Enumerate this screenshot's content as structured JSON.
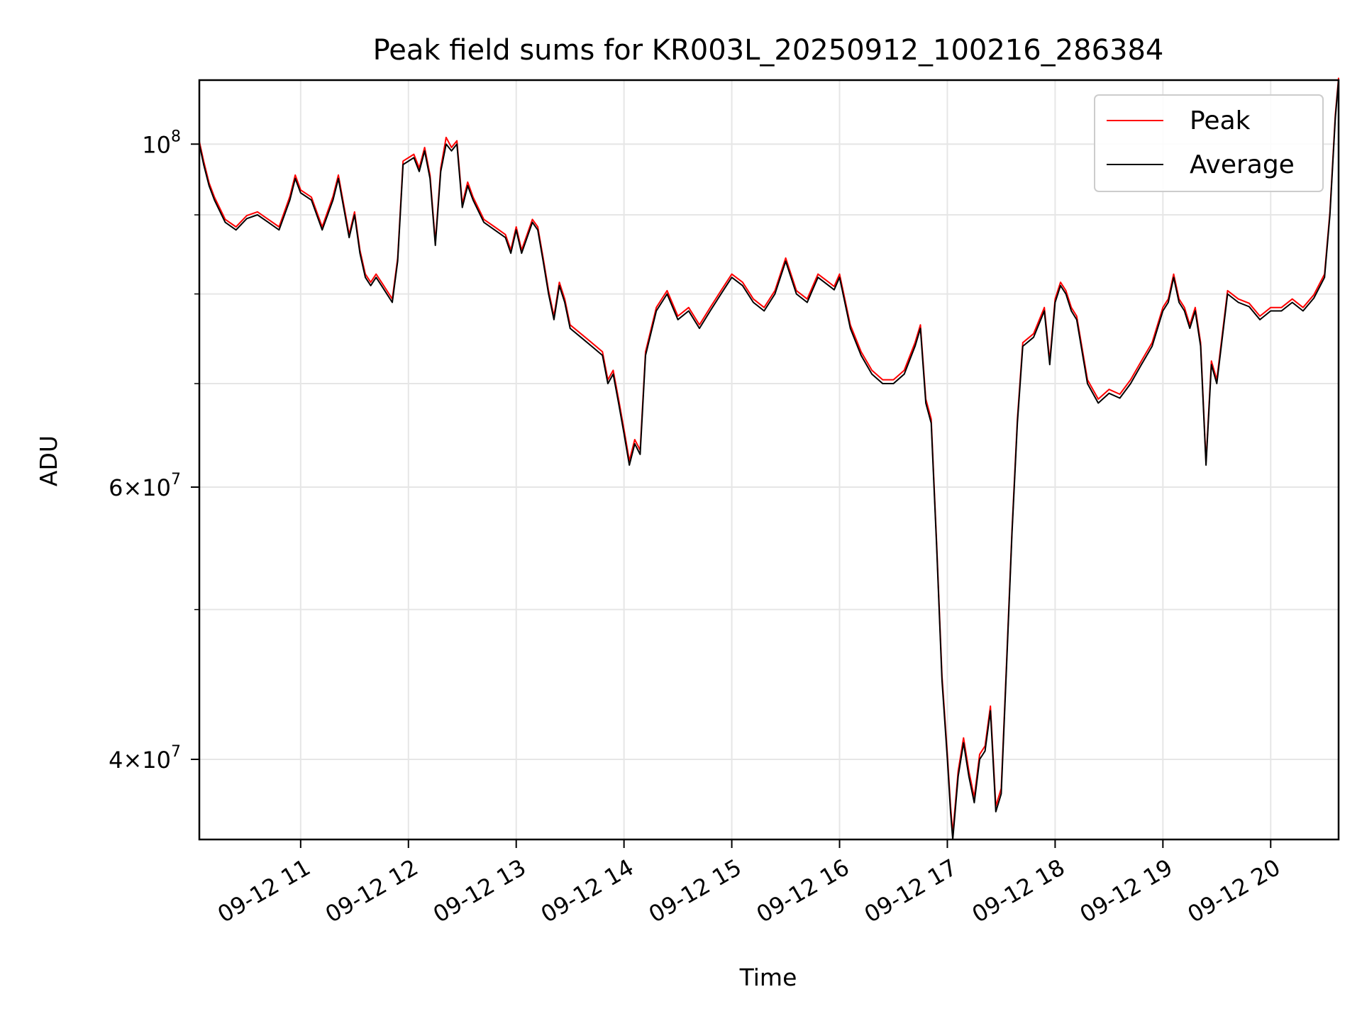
{
  "chart_data": {
    "type": "line",
    "title": "Peak field sums for KR003L_20250912_100216_286384",
    "xlabel": "Time",
    "ylabel": "ADU",
    "yscale": "log",
    "x_unit": "hours (clock time on 2025-09-12)",
    "xlim": [
      10.06,
      20.63
    ],
    "ylim": [
      35500000,
      110000000
    ],
    "grid": true,
    "legend_position": "top-right",
    "x_ticks": [
      {
        "value": 11,
        "label": "09-12 11"
      },
      {
        "value": 12,
        "label": "09-12 12"
      },
      {
        "value": 13,
        "label": "09-12 13"
      },
      {
        "value": 14,
        "label": "09-12 14"
      },
      {
        "value": 15,
        "label": "09-12 15"
      },
      {
        "value": 16,
        "label": "09-12 16"
      },
      {
        "value": 17,
        "label": "09-12 17"
      },
      {
        "value": 18,
        "label": "09-12 18"
      },
      {
        "value": 19,
        "label": "09-12 19"
      },
      {
        "value": 20,
        "label": "09-12 20"
      }
    ],
    "y_major_ticks": [
      {
        "value": 40000000,
        "base": "4",
        "exp": "7"
      },
      {
        "value": 60000000,
        "base": "6",
        "exp": "7"
      },
      {
        "value": 100000000,
        "base": "10",
        "exp": "8"
      }
    ],
    "y_minor_ticks": [
      50000000,
      70000000,
      80000000,
      90000000
    ],
    "times": [
      10.06,
      10.1,
      10.15,
      10.2,
      10.3,
      10.4,
      10.5,
      10.6,
      10.7,
      10.8,
      10.9,
      10.95,
      11.0,
      11.1,
      11.2,
      11.3,
      11.35,
      11.45,
      11.5,
      11.55,
      11.6,
      11.65,
      11.7,
      11.75,
      11.85,
      11.9,
      11.95,
      12.05,
      12.1,
      12.15,
      12.2,
      12.25,
      12.3,
      12.35,
      12.4,
      12.45,
      12.5,
      12.55,
      12.6,
      12.7,
      12.8,
      12.9,
      12.95,
      13.0,
      13.05,
      13.15,
      13.2,
      13.25,
      13.3,
      13.35,
      13.4,
      13.45,
      13.5,
      13.6,
      13.7,
      13.8,
      13.85,
      13.9,
      13.95,
      14.0,
      14.05,
      14.1,
      14.15,
      14.2,
      14.3,
      14.4,
      14.5,
      14.6,
      14.7,
      14.8,
      14.9,
      15.0,
      15.1,
      15.2,
      15.3,
      15.4,
      15.5,
      15.6,
      15.7,
      15.8,
      15.9,
      15.95,
      16.0,
      16.1,
      16.2,
      16.3,
      16.4,
      16.5,
      16.6,
      16.7,
      16.75,
      16.8,
      16.85,
      16.9,
      16.95,
      17.0,
      17.03,
      17.05,
      17.1,
      17.15,
      17.2,
      17.25,
      17.3,
      17.35,
      17.4,
      17.45,
      17.5,
      17.55,
      17.6,
      17.65,
      17.7,
      17.8,
      17.9,
      17.95,
      18.0,
      18.05,
      18.1,
      18.15,
      18.2,
      18.3,
      18.4,
      18.5,
      18.6,
      18.7,
      18.8,
      18.9,
      19.0,
      19.05,
      19.1,
      19.15,
      19.2,
      19.25,
      19.3,
      19.35,
      19.4,
      19.45,
      19.5,
      19.6,
      19.7,
      19.8,
      19.9,
      20.0,
      20.1,
      20.2,
      20.3,
      20.4,
      20.5,
      20.55,
      20.6,
      20.63
    ],
    "series": [
      {
        "name": "Average",
        "color": "#000000",
        "values": [
          100000000,
          97000000,
          94000000,
          92000000,
          89000000,
          88000000,
          89500000,
          90000000,
          89000000,
          88000000,
          92000000,
          95000000,
          93000000,
          92000000,
          88000000,
          92000000,
          95000000,
          87000000,
          90000000,
          85000000,
          82000000,
          81000000,
          82000000,
          81000000,
          79000000,
          84000000,
          97000000,
          98000000,
          96000000,
          99000000,
          95000000,
          86000000,
          96000000,
          100000000,
          99000000,
          100000000,
          91000000,
          94000000,
          92000000,
          89000000,
          88000000,
          87000000,
          85000000,
          88000000,
          85000000,
          89000000,
          88000000,
          84000000,
          80000000,
          77000000,
          81000000,
          79000000,
          76000000,
          75000000,
          74000000,
          73000000,
          70000000,
          71000000,
          68000000,
          65000000,
          62000000,
          64000000,
          63000000,
          73000000,
          78000000,
          80000000,
          77000000,
          78000000,
          76000000,
          78000000,
          80000000,
          82000000,
          81000000,
          79000000,
          78000000,
          80000000,
          84000000,
          80000000,
          79000000,
          82000000,
          81000000,
          80500000,
          82000000,
          76000000,
          73000000,
          71000000,
          70000000,
          70000000,
          71000000,
          74000000,
          76000000,
          68000000,
          66000000,
          55000000,
          45000000,
          40000000,
          37000000,
          35500000,
          39000000,
          41000000,
          39000000,
          37500000,
          40000000,
          40500000,
          43000000,
          37000000,
          38000000,
          46000000,
          56000000,
          66000000,
          74000000,
          75000000,
          78000000,
          72000000,
          79000000,
          81000000,
          80000000,
          78000000,
          77000000,
          70000000,
          68000000,
          69000000,
          68500000,
          70000000,
          72000000,
          74000000,
          78000000,
          79000000,
          82000000,
          79000000,
          78000000,
          76000000,
          78000000,
          74000000,
          62000000,
          72000000,
          70000000,
          80000000,
          79000000,
          78500000,
          77000000,
          78000000,
          78000000,
          79000000,
          78000000,
          79500000,
          82000000,
          90000000,
          104000000,
          110000000
        ]
      },
      {
        "name": "Peak",
        "color": "#ff0000",
        "values": [
          100400000,
          97500000,
          94400000,
          92400000,
          89400000,
          88400000,
          89900000,
          90400000,
          89400000,
          88400000,
          92500000,
          95500000,
          93400000,
          92400000,
          88400000,
          92500000,
          95500000,
          87400000,
          90400000,
          85400000,
          82400000,
          81400000,
          82400000,
          81400000,
          79400000,
          84400000,
          97500000,
          98500000,
          96500000,
          99500000,
          95500000,
          86400000,
          96500000,
          101000000,
          99500000,
          100500000,
          91500000,
          94500000,
          92400000,
          89400000,
          88400000,
          87400000,
          85400000,
          88400000,
          85400000,
          89400000,
          88400000,
          84400000,
          80400000,
          77400000,
          81400000,
          79400000,
          76400000,
          75400000,
          74400000,
          73400000,
          70400000,
          71400000,
          68400000,
          65400000,
          62400000,
          64400000,
          63400000,
          73400000,
          78400000,
          80400000,
          77400000,
          78400000,
          76400000,
          78400000,
          80400000,
          82400000,
          81400000,
          79400000,
          78400000,
          80400000,
          84400000,
          80400000,
          79400000,
          82400000,
          81400000,
          80900000,
          82400000,
          76400000,
          73400000,
          71400000,
          70400000,
          70400000,
          71400000,
          74400000,
          76400000,
          68400000,
          66400000,
          55300000,
          45300000,
          40300000,
          37300000,
          35800000,
          39300000,
          41300000,
          39300000,
          37800000,
          40300000,
          40800000,
          43300000,
          37300000,
          38300000,
          46300000,
          56300000,
          66400000,
          74400000,
          75400000,
          78400000,
          72400000,
          79400000,
          81400000,
          80400000,
          78400000,
          77400000,
          70400000,
          68400000,
          69400000,
          68900000,
          70400000,
          72400000,
          74400000,
          78400000,
          79400000,
          82400000,
          79400000,
          78400000,
          76400000,
          78400000,
          74400000,
          62300000,
          72400000,
          70400000,
          80400000,
          79400000,
          78900000,
          77400000,
          78400000,
          78400000,
          79400000,
          78400000,
          79900000,
          82400000,
          90400000,
          104500000,
          110400000
        ]
      }
    ]
  }
}
